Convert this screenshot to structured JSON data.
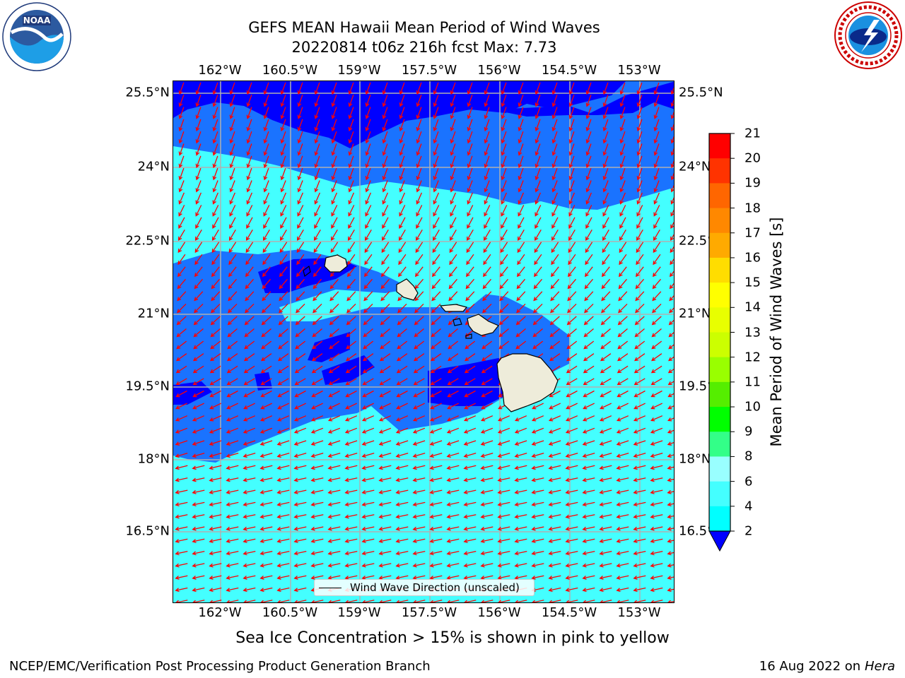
{
  "title": {
    "line1": "GEFS MEAN Hawaii Mean Period of Wind Waves",
    "line2": "20220814 t06z 216h fcst   Max: 7.73"
  },
  "axes": {
    "x_ticks": [
      "162°W",
      "160.5°W",
      "159°W",
      "157.5°W",
      "156°W",
      "154.5°W",
      "153°W"
    ],
    "y_ticks": [
      "25.5°N",
      "24°N",
      "22.5°N",
      "21°N",
      "19.5°N",
      "18°N",
      "16.5°N"
    ]
  },
  "legend": {
    "label": "Wind Wave Direction (unscaled)"
  },
  "colorbar": {
    "label": "Mean Period of Wind Waves [s]",
    "ticks": [
      "2",
      "4",
      "6",
      "8",
      "9",
      "10",
      "11",
      "12",
      "13",
      "14",
      "15",
      "16",
      "17",
      "18",
      "19",
      "20",
      "21"
    ],
    "colors": [
      "#0066ff",
      "#00ffff",
      "#44ffff",
      "#99ffff",
      "#33ff88",
      "#00ff00",
      "#55ee00",
      "#99ff00",
      "#ccff00",
      "#e8ff00",
      "#ffff00",
      "#ffdd00",
      "#ffaa00",
      "#ff8800",
      "#ff6600",
      "#ff3300",
      "#ff0000"
    ],
    "under_color": "#0000ff"
  },
  "map": {
    "colors": {
      "deep": "#0000ff",
      "mid": "#1a73ff",
      "light": "#44ffff",
      "land": "#eeecda",
      "arrow": "#ff0000"
    }
  },
  "footnote": "Sea Ice Concentration > 15% is shown in pink to yellow",
  "credit_left": "NCEP/EMC/Verification Post Processing Product Generation Branch",
  "credit_right_date": "16 Aug 2022 on",
  "credit_right_host": "Hera",
  "logos": {
    "left": "noaa-logo",
    "right": "nws-logo"
  }
}
